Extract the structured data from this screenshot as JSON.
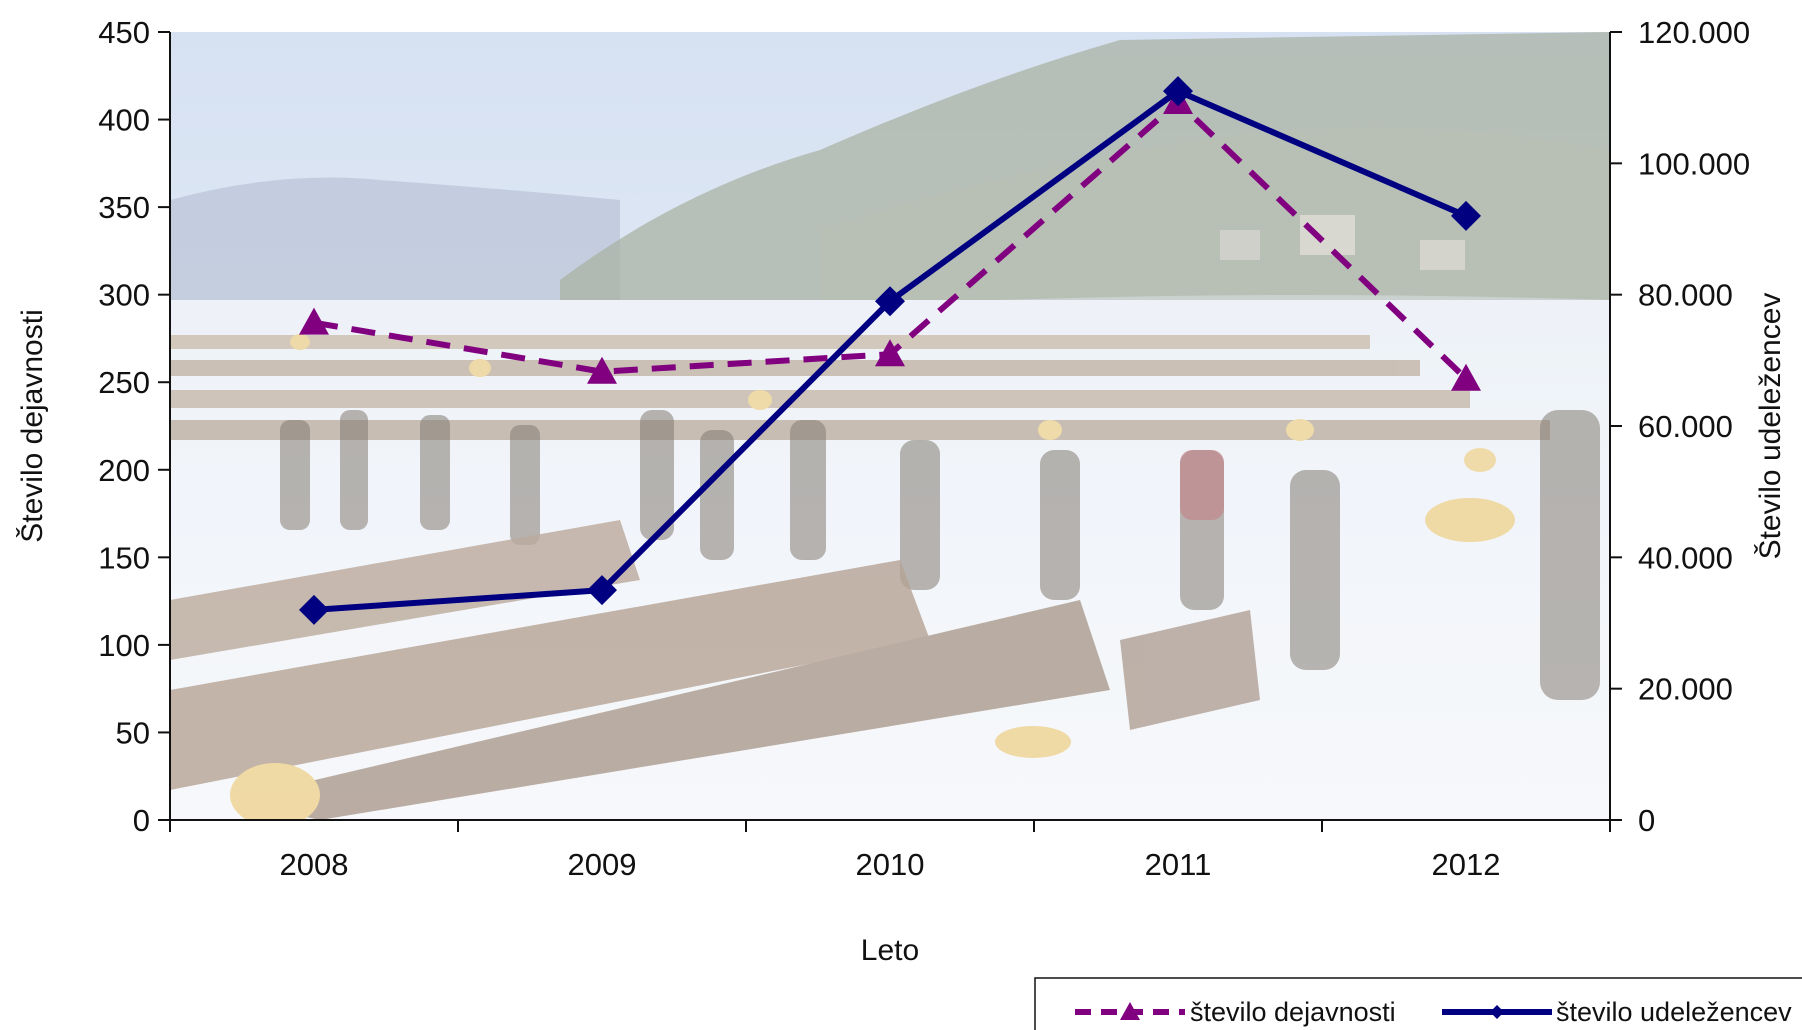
{
  "chart_data": {
    "type": "line",
    "title": "",
    "xlabel": "Leto",
    "ylabel_left": "Število dejavnosti",
    "ylabel_right": "Število udeležencev",
    "categories": [
      "2008",
      "2009",
      "2010",
      "2011",
      "2012"
    ],
    "y_left_ticks": [
      "0",
      "50",
      "100",
      "150",
      "200",
      "250",
      "300",
      "350",
      "400",
      "450"
    ],
    "y_right_ticks": [
      "0",
      "20.000",
      "40.000",
      "60.000",
      "80.000",
      "100.000",
      "120.000"
    ],
    "ylim_left": [
      0,
      450
    ],
    "ylim_right": [
      0,
      120000
    ],
    "background": "photo of a winter timber auction with people walking among snow-covered logs",
    "series": [
      {
        "name": "število dejavnosti",
        "axis": "left",
        "values": [
          284,
          256,
          266,
          410,
          252
        ],
        "color": "#800080",
        "line_style": "dashed",
        "marker": "triangle"
      },
      {
        "name": "število udeležencev",
        "axis": "right",
        "values": [
          32000,
          35000,
          79000,
          111000,
          92000
        ],
        "color": "#000080",
        "line_style": "solid",
        "marker": "diamond"
      }
    ],
    "legend_position": "bottom-right",
    "grid": false
  }
}
